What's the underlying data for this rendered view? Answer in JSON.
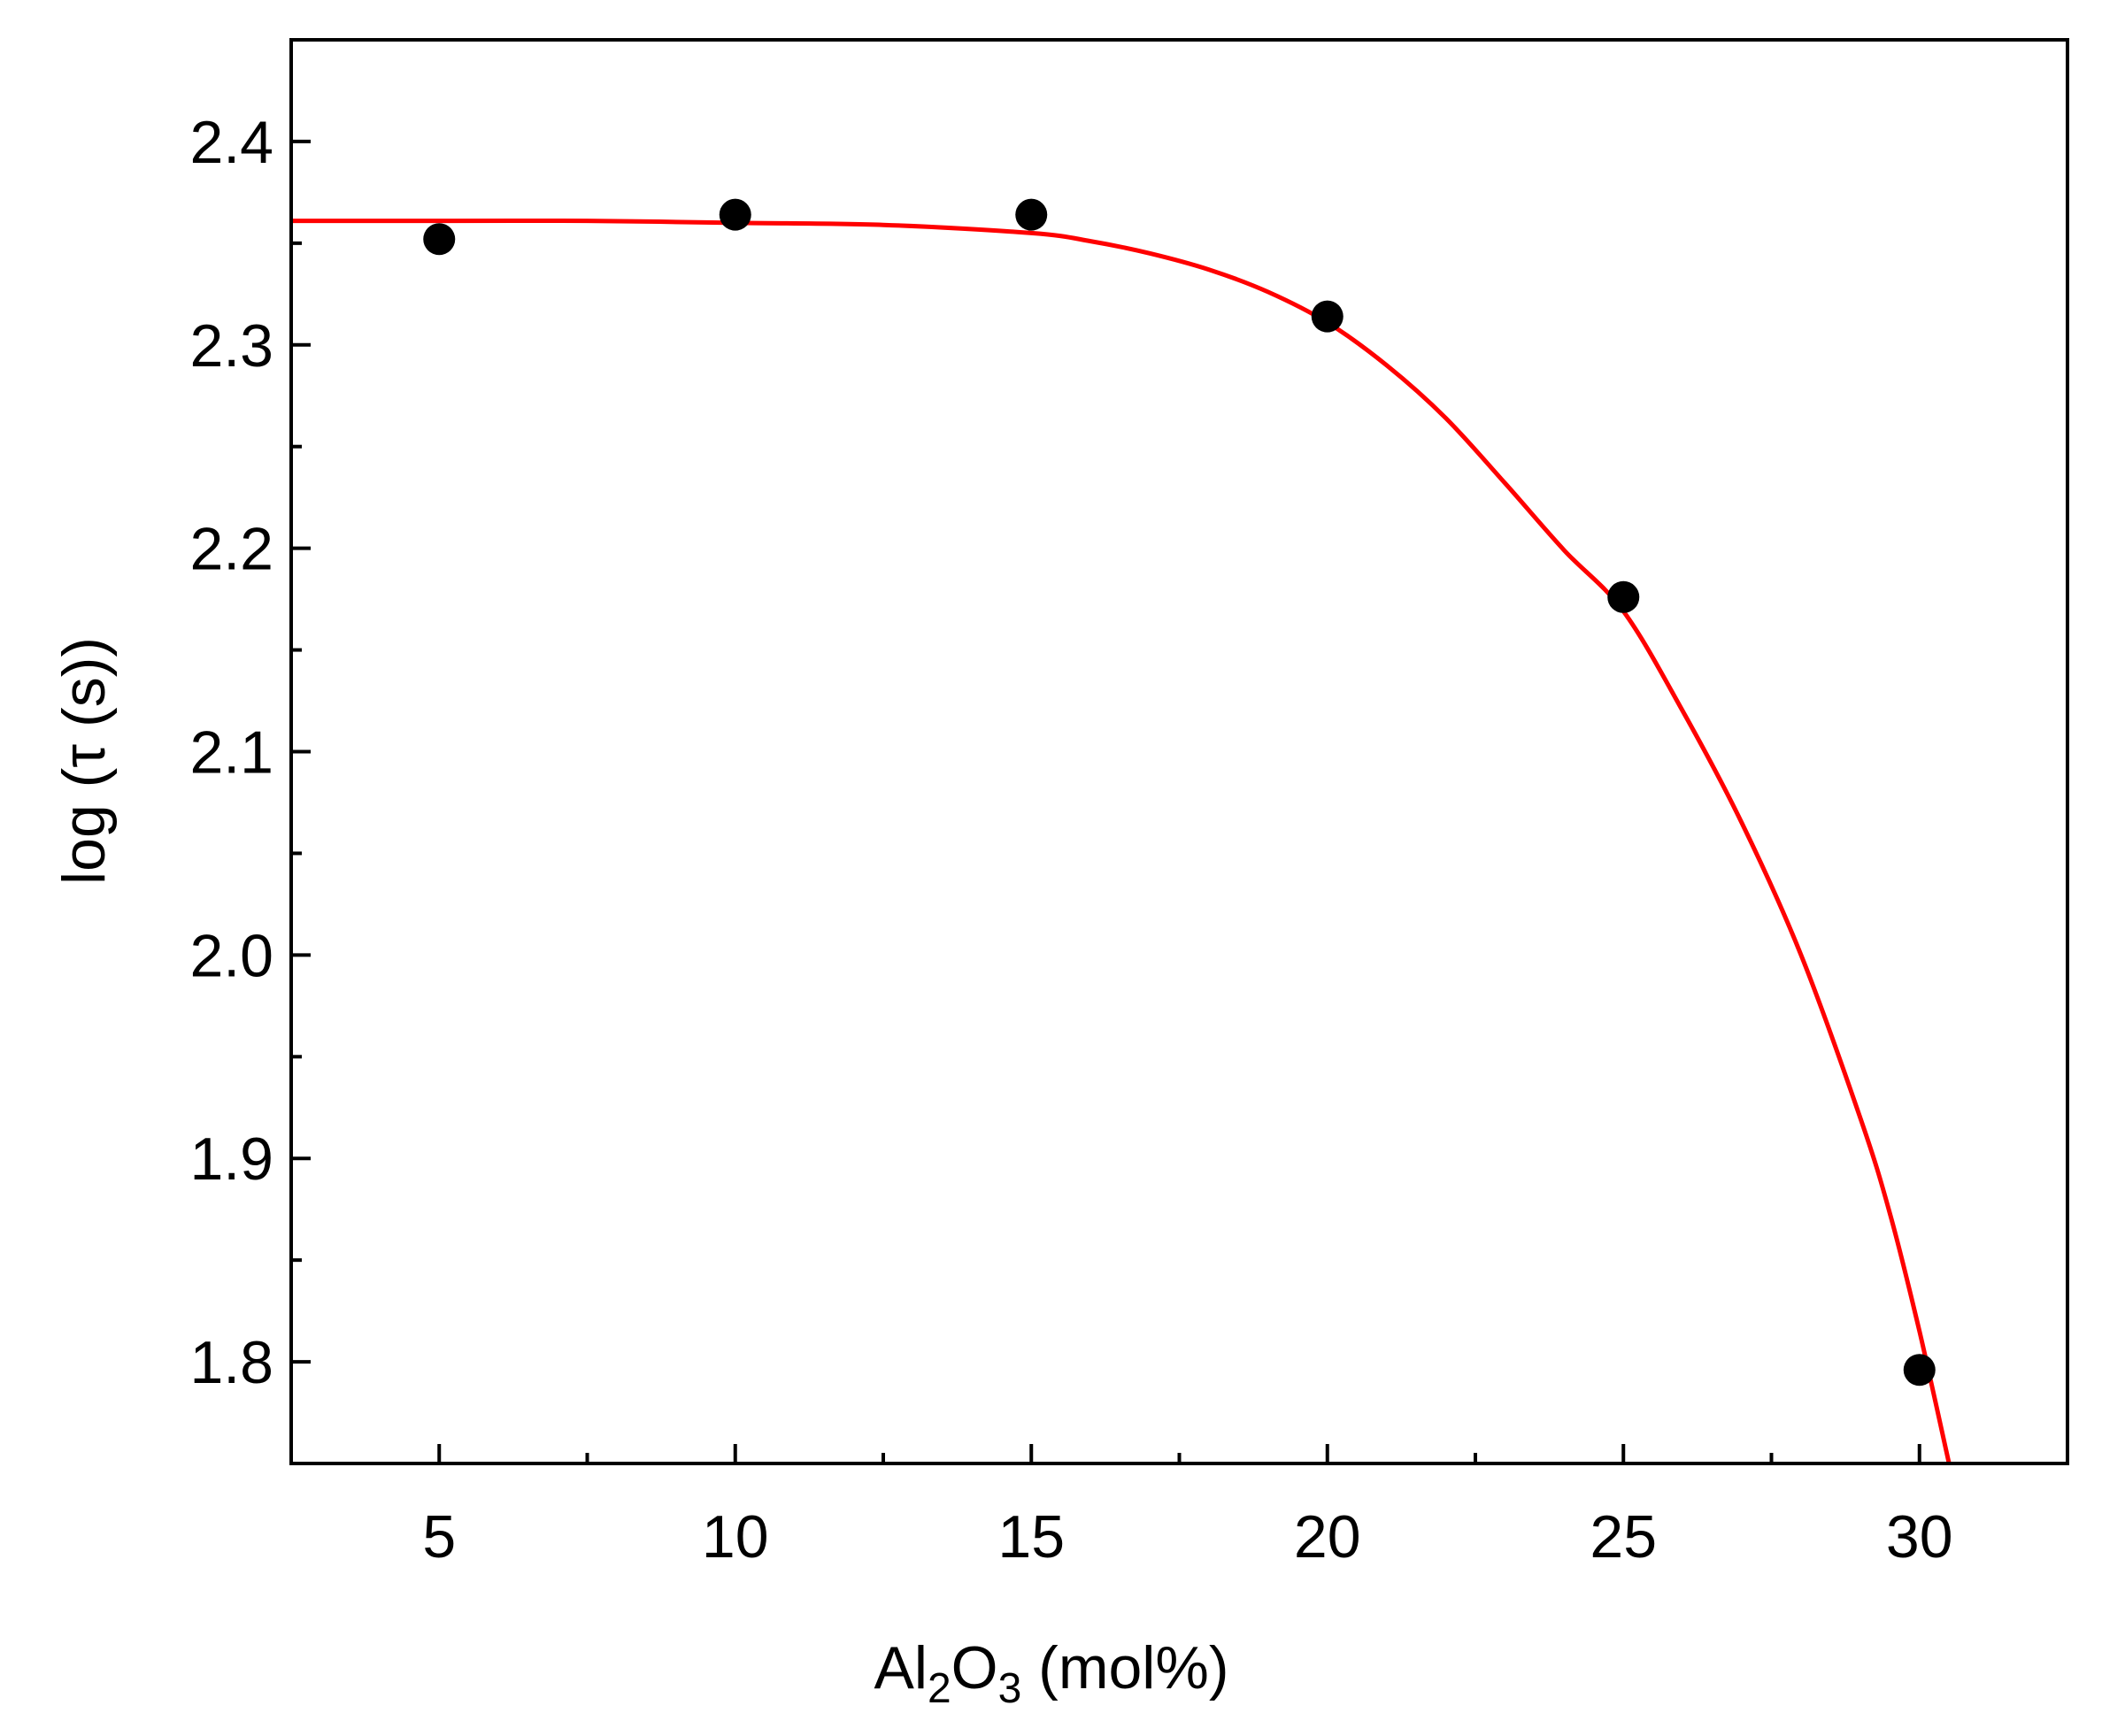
{
  "chart_data": {
    "type": "scatter",
    "title": "",
    "xlabel": {
      "main": "Al",
      "sub1": "2",
      "mid": "O",
      "sub2": "3",
      "tail": " (mol%)"
    },
    "ylabel": "log (τ (s))",
    "xlim": [
      2.5,
      32.5
    ],
    "ylim": [
      1.75,
      2.45
    ],
    "x_ticks": [
      5,
      10,
      15,
      20,
      25,
      30
    ],
    "x_tick_labels": [
      "5",
      "10",
      "15",
      "20",
      "25",
      "30"
    ],
    "x_minor_ticks": [
      7.5,
      12.5,
      17.5,
      22.5,
      27.5
    ],
    "y_ticks": [
      1.8,
      1.9,
      2.0,
      2.1,
      2.2,
      2.3,
      2.4
    ],
    "y_tick_labels": [
      "1.8",
      "1.9",
      "2.0",
      "2.1",
      "2.2",
      "2.3",
      "2.4"
    ],
    "y_minor_ticks": [
      1.85,
      1.95,
      2.05,
      2.15,
      2.25,
      2.35
    ],
    "grid": false,
    "legend": "none",
    "series": [
      {
        "kind": "points",
        "x": [
          5,
          10,
          15,
          20,
          25,
          30
        ],
        "y": [
          2.352,
          2.364,
          2.364,
          2.314,
          2.176,
          1.796
        ],
        "color": "#000000"
      },
      {
        "kind": "fit-line",
        "x": [
          2.5,
          5,
          7.5,
          10,
          12.5,
          15,
          16,
          17,
          18,
          19,
          20,
          21,
          22,
          23,
          24,
          25,
          26,
          27,
          28,
          29,
          29.5,
          30,
          30.5
        ],
        "y": [
          2.361,
          2.361,
          2.361,
          2.36,
          2.359,
          2.355,
          2.351,
          2.345,
          2.337,
          2.326,
          2.311,
          2.29,
          2.264,
          2.232,
          2.199,
          2.169,
          2.12,
          2.065,
          2.0,
          1.92,
          1.873,
          1.815,
          1.75
        ],
        "color": "#ff0000"
      }
    ]
  }
}
